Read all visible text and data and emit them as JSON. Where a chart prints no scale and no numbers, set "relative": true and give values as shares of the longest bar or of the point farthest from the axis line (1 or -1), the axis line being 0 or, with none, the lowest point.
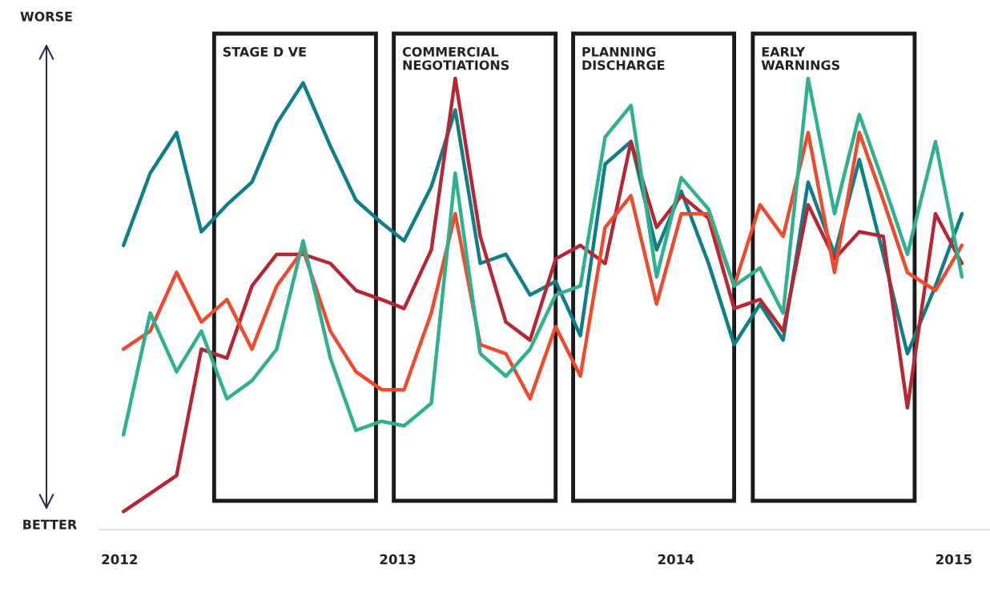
{
  "chart_data": {
    "type": "line",
    "relative": true,
    "x": [
      2012.014,
      2012.11,
      2012.205,
      2012.294,
      2012.386,
      2012.476,
      2012.565,
      2012.66,
      2012.758,
      2012.85,
      2012.942,
      2013.023,
      2013.121,
      2013.207,
      2013.297,
      2013.389,
      2013.476,
      2013.568,
      2013.657,
      2013.746,
      2013.839,
      2013.931,
      2014.02,
      2014.118,
      2014.21,
      2014.303,
      2014.386,
      2014.476,
      2014.571,
      2014.66,
      2014.746,
      2014.833,
      2014.934,
      2015.029
    ],
    "xlim": [
      2011.93,
      2015.13
    ],
    "xticks": [
      2012,
      2013,
      2014,
      2015
    ],
    "series": [
      {
        "color": "#0e7f86",
        "values": [
          0.63,
          0.79,
          0.88,
          0.66,
          0.72,
          0.77,
          0.9,
          0.99,
          0.85,
          0.73,
          0.68,
          0.64,
          0.76,
          0.93,
          0.59,
          0.61,
          0.52,
          0.55,
          0.43,
          0.81,
          0.86,
          0.62,
          0.75,
          0.59,
          0.41,
          0.5,
          0.42,
          0.77,
          0.61,
          0.82,
          0.61,
          0.39,
          0.54,
          0.7
        ]
      },
      {
        "color": "#b82535",
        "values": [
          0.04,
          0.08,
          0.12,
          0.4,
          0.38,
          0.54,
          0.61,
          0.61,
          0.59,
          0.53,
          0.51,
          0.49,
          0.62,
          1.0,
          0.65,
          0.46,
          0.42,
          0.6,
          0.63,
          0.59,
          0.86,
          0.67,
          0.74,
          0.69,
          0.49,
          0.51,
          0.44,
          0.72,
          0.6,
          0.66,
          0.65,
          0.27,
          0.7,
          0.59
        ]
      },
      {
        "color": "#ef4a2e",
        "values": [
          0.4,
          0.44,
          0.57,
          0.46,
          0.51,
          0.4,
          0.54,
          0.62,
          0.44,
          0.35,
          0.31,
          0.31,
          0.48,
          0.7,
          0.41,
          0.39,
          0.29,
          0.45,
          0.34,
          0.67,
          0.74,
          0.5,
          0.7,
          0.7,
          0.54,
          0.72,
          0.65,
          0.88,
          0.57,
          0.88,
          0.73,
          0.57,
          0.53,
          0.63
        ]
      },
      {
        "color": "#2fb08f",
        "values": [
          0.21,
          0.48,
          0.35,
          0.44,
          0.29,
          0.33,
          0.4,
          0.64,
          0.38,
          0.22,
          0.24,
          0.23,
          0.28,
          0.79,
          0.39,
          0.34,
          0.4,
          0.52,
          0.54,
          0.87,
          0.94,
          0.56,
          0.78,
          0.71,
          0.54,
          0.58,
          0.48,
          1.0,
          0.7,
          0.92,
          0.77,
          0.61,
          0.86,
          0.56
        ]
      }
    ],
    "bands": [
      {
        "axis": "x",
        "from": 2012.34,
        "to": 2012.922,
        "label": "STAGE D VE",
        "color": "#1a1a1a"
      },
      {
        "axis": "x",
        "from": 2012.986,
        "to": 2013.568,
        "label": "COMMERCIAL\nNEGOTIATIONS",
        "color": "#1a1a1a"
      },
      {
        "axis": "x",
        "from": 2013.631,
        "to": 2014.21,
        "label": "PLANNING\nDISCHARGE",
        "color": "#1a1a1a"
      },
      {
        "axis": "x",
        "from": 2014.277,
        "to": 2014.859,
        "label": "EARLY\nWARNINGS",
        "color": "#1a1a1a"
      }
    ],
    "annotations": [
      "WORSE",
      "BETTER"
    ],
    "grid": false,
    "marker": "none",
    "line_style": "solid"
  }
}
